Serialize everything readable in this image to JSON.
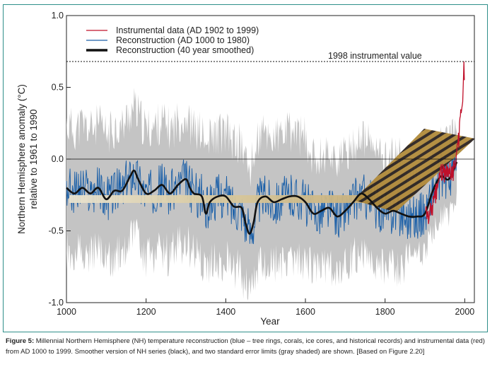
{
  "chart_data": {
    "type": "line",
    "ylabel_line1": "Northern Hemisphere anomaly (°C)",
    "ylabel_line2": "relative to 1961 to 1990",
    "xlabel": "Year",
    "xlim": [
      1000,
      2010
    ],
    "ylim": [
      -1.0,
      1.0
    ],
    "xticks": [
      "1000",
      "1200",
      "1400",
      "1600",
      "1800",
      "2000"
    ],
    "xtick_values": [
      1000,
      1200,
      1400,
      1600,
      1800,
      2000
    ],
    "yticks": [
      "1.0",
      "0.5",
      "0.0",
      "-0.5",
      "-1.0"
    ],
    "ytick_values": [
      1.0,
      0.5,
      0.0,
      -0.5,
      -1.0
    ],
    "zero_line": 0.0,
    "reference_line": {
      "value": 0.68,
      "label": "1998 instrumental value"
    },
    "legend": [
      {
        "label": "Instrumental data (AD 1902 to 1999)",
        "color": "#c0102a",
        "style": "thin"
      },
      {
        "label": "Reconstruction (AD 1000 to 1980)",
        "color": "#1a5fa8",
        "style": "thin"
      },
      {
        "label": "Reconstruction (40 year smoothed)",
        "color": "#111111",
        "style": "thick"
      }
    ],
    "series": [
      {
        "name": "Reconstruction (40 year smoothed)",
        "color": "#111111",
        "x": [
          1000,
          1020,
          1040,
          1060,
          1080,
          1100,
          1120,
          1140,
          1160,
          1170,
          1180,
          1200,
          1220,
          1240,
          1260,
          1280,
          1300,
          1310,
          1320,
          1340,
          1350,
          1360,
          1380,
          1400,
          1420,
          1440,
          1450,
          1460,
          1470,
          1480,
          1500,
          1520,
          1540,
          1560,
          1580,
          1600,
          1620,
          1640,
          1660,
          1680,
          1700,
          1720,
          1740,
          1760,
          1780,
          1800,
          1820,
          1840,
          1860,
          1880,
          1900,
          1920,
          1940,
          1960,
          1980
        ],
        "values": [
          -0.2,
          -0.24,
          -0.2,
          -0.24,
          -0.2,
          -0.28,
          -0.22,
          -0.22,
          -0.12,
          -0.08,
          -0.14,
          -0.24,
          -0.22,
          -0.18,
          -0.24,
          -0.18,
          -0.14,
          -0.2,
          -0.24,
          -0.26,
          -0.38,
          -0.3,
          -0.26,
          -0.26,
          -0.33,
          -0.34,
          -0.45,
          -0.52,
          -0.44,
          -0.3,
          -0.26,
          -0.3,
          -0.28,
          -0.26,
          -0.26,
          -0.3,
          -0.38,
          -0.36,
          -0.34,
          -0.4,
          -0.36,
          -0.3,
          -0.24,
          -0.28,
          -0.34,
          -0.38,
          -0.36,
          -0.38,
          -0.4,
          -0.4,
          -0.38,
          -0.22,
          -0.12,
          -0.14,
          -0.02
        ]
      },
      {
        "name": "Instrumental data (AD 1902 to 1999)",
        "color": "#c0102a",
        "x": [
          1902,
          1910,
          1920,
          1930,
          1940,
          1950,
          1960,
          1970,
          1975,
          1980,
          1985,
          1990,
          1995,
          1998,
          1999
        ],
        "values": [
          -0.38,
          -0.4,
          -0.32,
          -0.22,
          -0.08,
          -0.12,
          -0.05,
          -0.1,
          -0.05,
          0.1,
          0.12,
          0.3,
          0.4,
          0.68,
          0.55
        ]
      }
    ]
  },
  "caption": {
    "label": "Figure 5:",
    "text": "Millennial Northern Hemisphere (NH) temperature reconstruction (blue – tree rings, corals, ice cores, and historical records) and instrumental data (red) from AD 1000 to 1999. Smoother version of NH series (black), and two standard error limits (gray shaded) are shown. [Based on Figure 2.20]"
  }
}
